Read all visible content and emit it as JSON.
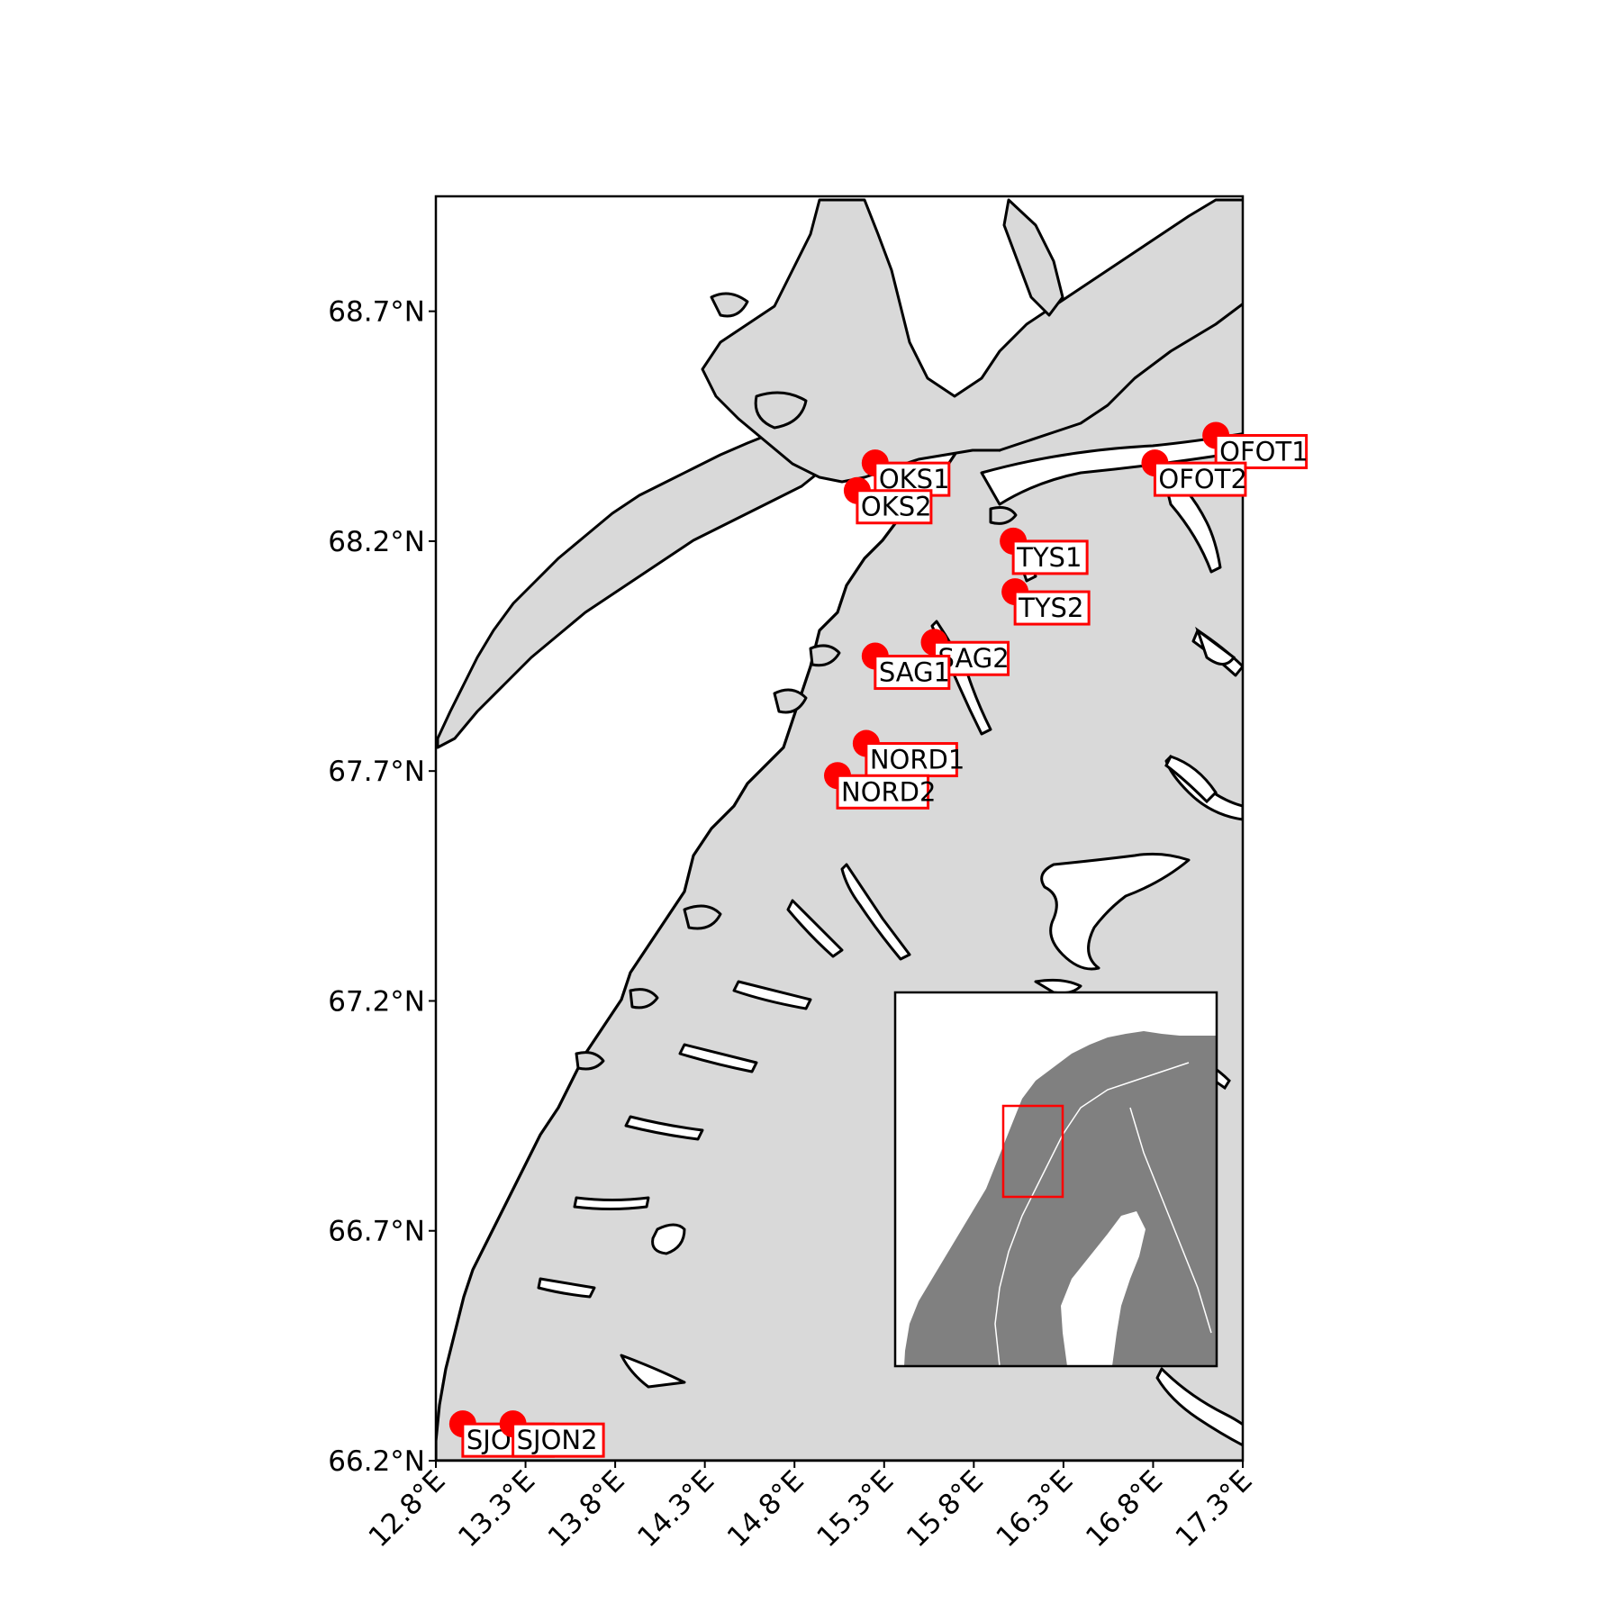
{
  "map": {
    "extent": {
      "lon": [
        12.8,
        17.3
      ],
      "lat": [
        66.2,
        68.95
      ]
    },
    "land_color": "#d9d9d9",
    "coast_color": "#000000",
    "station_color": "#ff0000",
    "inset_land_color": "#808080"
  },
  "axes": {
    "x_ticks": [
      {
        "value": 12.8,
        "label": "12.8°E"
      },
      {
        "value": 13.3,
        "label": "13.3°E"
      },
      {
        "value": 13.8,
        "label": "13.8°E"
      },
      {
        "value": 14.3,
        "label": "14.3°E"
      },
      {
        "value": 14.8,
        "label": "14.8°E"
      },
      {
        "value": 15.3,
        "label": "15.3°E"
      },
      {
        "value": 15.8,
        "label": "15.8°E"
      },
      {
        "value": 16.3,
        "label": "16.3°E"
      },
      {
        "value": 16.8,
        "label": "16.8°E"
      },
      {
        "value": 17.3,
        "label": "17.3°E"
      }
    ],
    "y_ticks": [
      {
        "value": 66.2,
        "label": "66.2°N"
      },
      {
        "value": 66.7,
        "label": "66.7°N"
      },
      {
        "value": 67.2,
        "label": "67.2°N"
      },
      {
        "value": 67.7,
        "label": "67.7°N"
      },
      {
        "value": 68.2,
        "label": "68.2°N"
      },
      {
        "value": 68.7,
        "label": "68.7°N"
      }
    ]
  },
  "stations": [
    {
      "label": "OFOT1",
      "lon": 17.15,
      "lat": 68.43
    },
    {
      "label": "OFOT2",
      "lon": 16.81,
      "lat": 68.37
    },
    {
      "label": "OKS1",
      "lon": 15.25,
      "lat": 68.37
    },
    {
      "label": "OKS2",
      "lon": 15.15,
      "lat": 68.31
    },
    {
      "label": "TYS1",
      "lon": 16.02,
      "lat": 68.2
    },
    {
      "label": "TYS2",
      "lon": 16.03,
      "lat": 68.09
    },
    {
      "label": "SAG2",
      "lon": 15.58,
      "lat": 67.98
    },
    {
      "label": "SAG1",
      "lon": 15.25,
      "lat": 67.95
    },
    {
      "label": "NORD1",
      "lon": 15.2,
      "lat": 67.76
    },
    {
      "label": "NORD2",
      "lon": 15.04,
      "lat": 67.69
    },
    {
      "label": "SJON1",
      "lon": 12.95,
      "lat": 66.28
    },
    {
      "label": "SJON2",
      "lon": 13.23,
      "lat": 66.28
    }
  ],
  "inset": {
    "highlight": "study-area-rectangle"
  }
}
